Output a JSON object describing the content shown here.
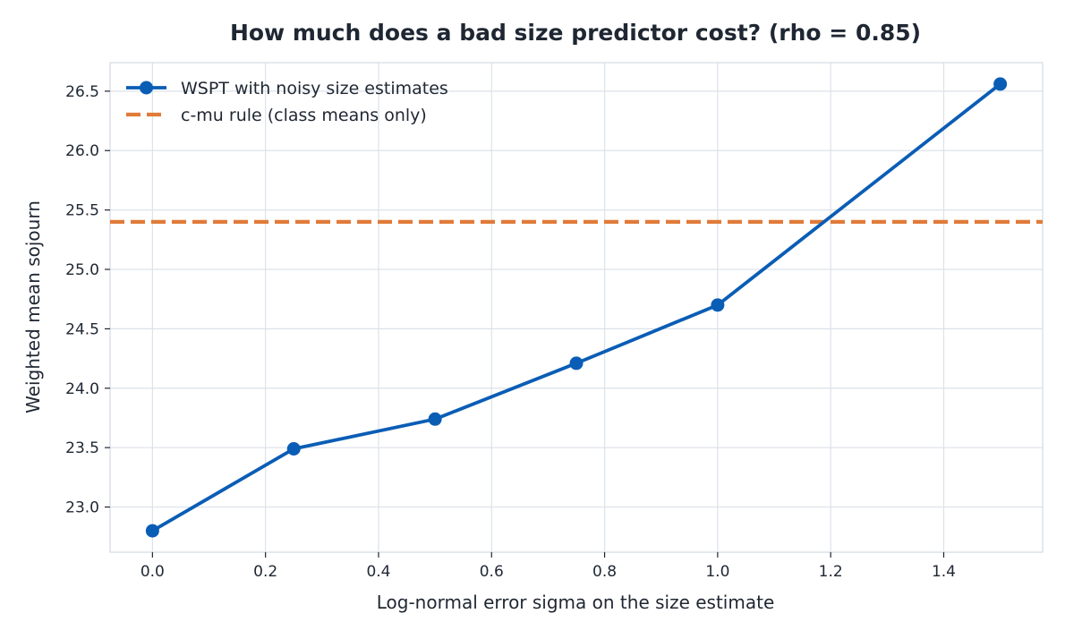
{
  "chart_data": {
    "type": "line",
    "title": "How much does a bad size predictor cost? (rho = 0.85)",
    "xlabel": "Log-normal error sigma on the size estimate",
    "ylabel": "Weighted mean sojourn",
    "xlim": [
      -0.075,
      1.575
    ],
    "ylim": [
      22.62,
      26.74
    ],
    "x_ticks": [
      0.0,
      0.2,
      0.4,
      0.6,
      0.8,
      1.0,
      1.2,
      1.4
    ],
    "x_tick_labels": [
      "0.0",
      "0.2",
      "0.4",
      "0.6",
      "0.8",
      "1.0",
      "1.2",
      "1.4"
    ],
    "y_ticks": [
      23.0,
      23.5,
      24.0,
      24.5,
      25.0,
      25.5,
      26.0,
      26.5
    ],
    "y_tick_labels": [
      "23.0",
      "23.5",
      "24.0",
      "24.5",
      "25.0",
      "25.5",
      "26.0",
      "26.5"
    ],
    "grid": true,
    "legend_position": "top-left",
    "series": [
      {
        "name": "WSPT with noisy size estimates",
        "style": "solid-with-markers",
        "color": "#0a5db5",
        "x": [
          0.0,
          0.25,
          0.5,
          0.75,
          1.0,
          1.5
        ],
        "y": [
          22.8,
          23.49,
          23.74,
          24.21,
          24.7,
          26.56
        ]
      },
      {
        "name": "c-mu rule (class means only)",
        "style": "dashed-horizontal",
        "color": "#e07b39",
        "y": 25.4
      }
    ]
  }
}
